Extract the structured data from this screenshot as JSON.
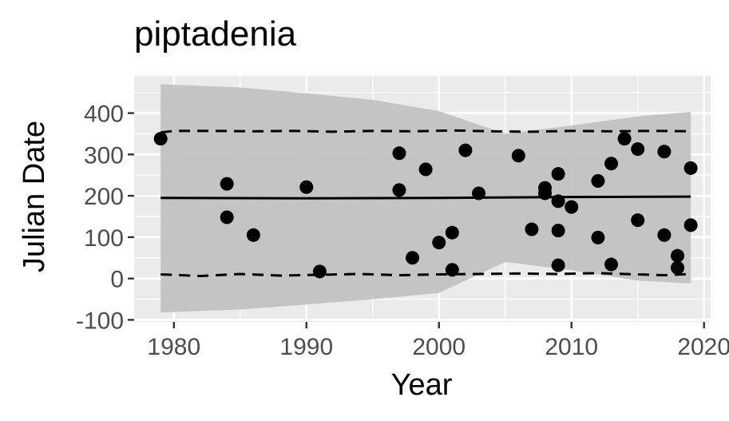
{
  "chart_data": {
    "type": "scatter",
    "title": "piptadenia",
    "xlabel": "Year",
    "ylabel": "Julian Date",
    "xlim": [
      1977,
      2020.5
    ],
    "ylim": [
      -105,
      490
    ],
    "x_ticks": [
      1980,
      1990,
      2000,
      2010,
      2020
    ],
    "y_ticks": [
      -100,
      0,
      100,
      200,
      300,
      400
    ],
    "x_tick_labels": [
      "1980",
      "1990",
      "2000",
      "2010",
      "2020"
    ],
    "y_tick_labels": [
      "-100",
      "0",
      "100",
      "200",
      "300",
      "400"
    ],
    "grid": true,
    "points": [
      {
        "x": 1979,
        "y": 338
      },
      {
        "x": 1984,
        "y": 229
      },
      {
        "x": 1984,
        "y": 148
      },
      {
        "x": 1986,
        "y": 105
      },
      {
        "x": 1990,
        "y": 221
      },
      {
        "x": 1991,
        "y": 17
      },
      {
        "x": 1997,
        "y": 303
      },
      {
        "x": 1997,
        "y": 214
      },
      {
        "x": 1998,
        "y": 50
      },
      {
        "x": 1999,
        "y": 264
      },
      {
        "x": 2000,
        "y": 87
      },
      {
        "x": 2001,
        "y": 111
      },
      {
        "x": 2001,
        "y": 21
      },
      {
        "x": 2002,
        "y": 310
      },
      {
        "x": 2003,
        "y": 206
      },
      {
        "x": 2006,
        "y": 297
      },
      {
        "x": 2007,
        "y": 119
      },
      {
        "x": 2008,
        "y": 219
      },
      {
        "x": 2008,
        "y": 206
      },
      {
        "x": 2009,
        "y": 253
      },
      {
        "x": 2009,
        "y": 187
      },
      {
        "x": 2009,
        "y": 116
      },
      {
        "x": 2009,
        "y": 32
      },
      {
        "x": 2010,
        "y": 173
      },
      {
        "x": 2012,
        "y": 236
      },
      {
        "x": 2012,
        "y": 99
      },
      {
        "x": 2013,
        "y": 278
      },
      {
        "x": 2013,
        "y": 34
      },
      {
        "x": 2014,
        "y": 338
      },
      {
        "x": 2015,
        "y": 313
      },
      {
        "x": 2015,
        "y": 141
      },
      {
        "x": 2017,
        "y": 307
      },
      {
        "x": 2017,
        "y": 105
      },
      {
        "x": 2018,
        "y": 55
      },
      {
        "x": 2018,
        "y": 26
      },
      {
        "x": 2019,
        "y": 267
      },
      {
        "x": 2019,
        "y": 129
      }
    ],
    "trend_line": {
      "x": [
        1979,
        1990,
        2000,
        2010,
        2019
      ],
      "y": [
        195,
        194,
        195,
        197,
        198
      ]
    },
    "confidence_band": {
      "x": [
        1979,
        1985,
        1990,
        1995,
        2000,
        2005,
        2010,
        2015,
        2019
      ],
      "upper": [
        470,
        462,
        448,
        432,
        405,
        350,
        370,
        392,
        403
      ],
      "lower": [
        -82,
        -75,
        -63,
        -50,
        -35,
        40,
        20,
        -5,
        -12
      ]
    },
    "dashed_upper": {
      "x": [
        1979,
        1980,
        1983,
        1986,
        1989,
        1992,
        1995,
        1998,
        2001,
        2004,
        2007,
        2010,
        2013,
        2016,
        2019
      ],
      "y": [
        353,
        357,
        357,
        356,
        357,
        355,
        357,
        356,
        358,
        356,
        355,
        357,
        356,
        357,
        356
      ]
    },
    "dashed_lower": {
      "x": [
        1979,
        1982,
        1985,
        1988,
        1991,
        1994,
        1997,
        2000,
        2003,
        2006,
        2009,
        2012,
        2015,
        2017,
        2019
      ],
      "y": [
        10,
        6,
        11,
        7,
        9,
        11,
        8,
        10,
        11,
        12,
        11,
        13,
        10,
        8,
        11
      ]
    },
    "colors": {
      "panel": "#ebebeb",
      "band": "#c2c2c2",
      "grid": "#ffffff",
      "points": "#000000",
      "axis_text": "#4d4d4d"
    }
  }
}
